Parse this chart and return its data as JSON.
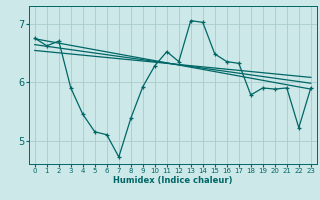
{
  "xlabel": "Humidex (Indice chaleur)",
  "bg_color": "#cce8e8",
  "line_color": "#006666",
  "grid_color": "#aacccc",
  "xlim": [
    -0.5,
    23.5
  ],
  "ylim": [
    4.6,
    7.3
  ],
  "yticks": [
    5,
    6,
    7
  ],
  "xticks": [
    0,
    1,
    2,
    3,
    4,
    5,
    6,
    7,
    8,
    9,
    10,
    11,
    12,
    13,
    14,
    15,
    16,
    17,
    18,
    19,
    20,
    21,
    22,
    23
  ],
  "curve_x": [
    0,
    1,
    2,
    3,
    4,
    5,
    6,
    7,
    8,
    9,
    10,
    11,
    12,
    13,
    14,
    15,
    16,
    17,
    18,
    19,
    20,
    21,
    22,
    23
  ],
  "curve_y": [
    6.75,
    6.62,
    6.7,
    5.9,
    5.45,
    5.15,
    5.1,
    4.72,
    5.38,
    5.92,
    6.28,
    6.52,
    6.35,
    7.05,
    7.02,
    6.48,
    6.35,
    6.32,
    5.78,
    5.9,
    5.88,
    5.9,
    5.22,
    5.9
  ],
  "trend1_x": [
    0,
    23
  ],
  "trend1_y": [
    6.74,
    5.88
  ],
  "trend2_x": [
    0,
    23
  ],
  "trend2_y": [
    6.64,
    5.98
  ],
  "trend3_x": [
    0,
    23
  ],
  "trend3_y": [
    6.54,
    6.08
  ]
}
